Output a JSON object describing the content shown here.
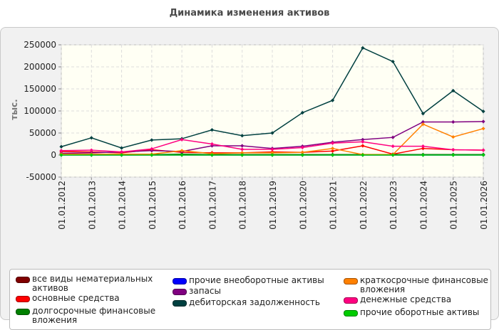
{
  "chart_data": {
    "type": "line",
    "title": "Динамика изменения активов",
    "ylabel": "тыс.",
    "xlabel": "",
    "ylim": [
      -50000,
      250000
    ],
    "yticks": [
      -50000,
      0,
      50000,
      100000,
      150000,
      200000,
      250000
    ],
    "grid": true,
    "legend_position": "bottom",
    "categories": [
      "01.01.2012",
      "01.01.2013",
      "01.01.2014",
      "01.01.2015",
      "01.01.2016",
      "01.01.2017",
      "01.01.2018",
      "01.01.2019",
      "01.01.2020",
      "01.01.2021",
      "01.01.2022",
      "01.01.2023",
      "01.01.2024",
      "01.01.2025",
      "01.01.2026"
    ],
    "series": [
      {
        "name": "все виды нематериальных активов",
        "color": "#800000",
        "values": [
          1000,
          1000,
          1000,
          1000,
          1000,
          1000,
          1000,
          1000,
          1000,
          1000,
          1000,
          1000,
          1000,
          1000,
          1000
        ]
      },
      {
        "name": "основные средства",
        "color": "#ff0000",
        "values": [
          8000,
          7000,
          5000,
          12000,
          6000,
          5000,
          5000,
          7000,
          6000,
          9000,
          21000,
          2000,
          15000,
          12000,
          11000
        ]
      },
      {
        "name": "долгосрочные финансовые вложения",
        "color": "#008000",
        "values": [
          1000,
          2000,
          1000,
          1000,
          2000,
          1000,
          1000,
          1000,
          1000,
          1000,
          1000,
          1000,
          1000,
          1000,
          1000
        ]
      },
      {
        "name": "прочие внеоборотные активы",
        "color": "#0000ff",
        "values": [
          0,
          0,
          0,
          0,
          0,
          0,
          0,
          0,
          0,
          0,
          0,
          0,
          0,
          0,
          0
        ]
      },
      {
        "name": "запасы",
        "color": "#800080",
        "values": [
          4000,
          5000,
          7000,
          10000,
          8000,
          21000,
          21000,
          15000,
          20000,
          29000,
          35000,
          40000,
          75000,
          75000,
          76000
        ]
      },
      {
        "name": "дебиторская задолженность",
        "color": "#004040",
        "values": [
          19000,
          39000,
          16000,
          34000,
          37000,
          57000,
          44000,
          50000,
          96000,
          124000,
          243000,
          212000,
          94000,
          146000,
          99000
        ]
      },
      {
        "name": "краткосрочные финансовые вложения",
        "color": "#ff8000",
        "values": [
          2000,
          2000,
          2000,
          2000,
          10000,
          3000,
          5000,
          5000,
          6000,
          15000,
          1000,
          1000,
          70000,
          41000,
          60000
        ]
      },
      {
        "name": "денежные средства",
        "color": "#ff0080",
        "values": [
          10000,
          11000,
          7000,
          14000,
          35000,
          25000,
          13000,
          13000,
          17000,
          27000,
          30000,
          20000,
          20000,
          12000,
          11000
        ]
      },
      {
        "name": "прочие оборотные активы",
        "color": "#00cc00",
        "values": [
          0,
          0,
          0,
          0,
          0,
          0,
          0,
          0,
          0,
          0,
          0,
          0,
          0,
          0,
          0
        ]
      }
    ]
  }
}
